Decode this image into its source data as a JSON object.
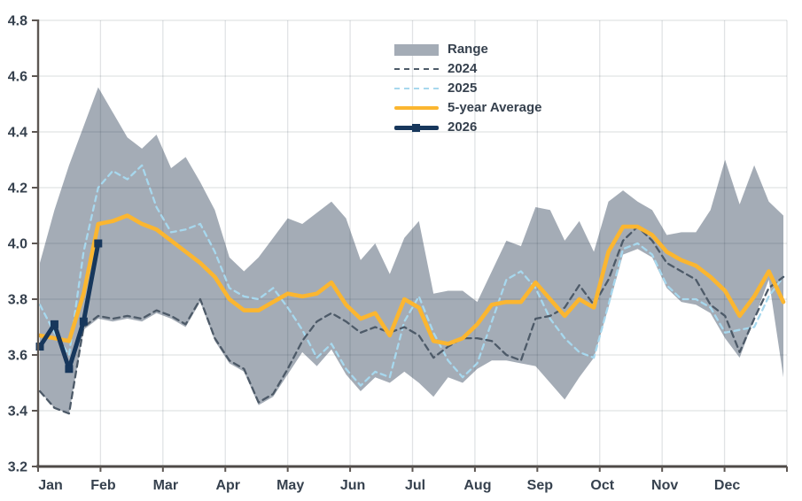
{
  "chart_data": {
    "type": "line",
    "title": "",
    "x_axis": {
      "label": "",
      "tick_labels": [
        "Jan",
        "Feb",
        "Mar",
        "Apr",
        "May",
        "Jun",
        "Jul",
        "Aug",
        "Sep",
        "Oct",
        "Nov",
        "Dec"
      ]
    },
    "y_axis": {
      "label": "",
      "tick_labels": [
        "4.8",
        "4.6",
        "4.4",
        "4.2",
        "4.0",
        "3.8",
        "3.6",
        "3.4",
        "3.2"
      ],
      "min": 3.2,
      "max": 4.8,
      "tick_step": 0.2
    },
    "grid": true,
    "n_points": 52,
    "x_unit": "weekly, Jan through Dec",
    "legend": {
      "position": "upper-center",
      "items": [
        {
          "label": "Range"
        },
        {
          "label": "2024"
        },
        {
          "label": "2025"
        },
        {
          "label": "5-year Average"
        },
        {
          "label": "2026"
        }
      ]
    },
    "series": [
      {
        "name": "Range",
        "type": "band",
        "color": "#a4acb6",
        "upper": [
          3.93,
          4.12,
          4.28,
          4.42,
          4.56,
          4.47,
          4.38,
          4.34,
          4.39,
          4.27,
          4.31,
          4.22,
          4.12,
          3.95,
          3.9,
          3.95,
          4.02,
          4.09,
          4.07,
          4.11,
          4.15,
          4.09,
          3.94,
          4.0,
          3.89,
          4.02,
          4.08,
          3.82,
          3.83,
          3.83,
          3.79,
          3.9,
          4.01,
          3.99,
          4.13,
          4.12,
          4.01,
          4.08,
          3.97,
          4.15,
          4.19,
          4.15,
          4.12,
          4.03,
          4.04,
          4.04,
          4.12,
          4.3,
          4.14,
          4.28,
          4.15,
          4.1
        ],
        "lower": [
          3.47,
          3.41,
          3.39,
          3.69,
          3.73,
          3.72,
          3.73,
          3.72,
          3.75,
          3.73,
          3.7,
          3.79,
          3.65,
          3.57,
          3.54,
          3.42,
          3.45,
          3.53,
          3.61,
          3.56,
          3.62,
          3.53,
          3.47,
          3.52,
          3.5,
          3.54,
          3.5,
          3.45,
          3.52,
          3.5,
          3.55,
          3.58,
          3.58,
          3.57,
          3.56,
          3.5,
          3.44,
          3.52,
          3.59,
          3.77,
          3.96,
          3.98,
          3.95,
          3.84,
          3.79,
          3.78,
          3.75,
          3.66,
          3.59,
          3.73,
          3.87,
          3.52
        ]
      },
      {
        "name": "2024",
        "type": "line",
        "style": "dashed",
        "color": "#4d5a68",
        "values": [
          3.47,
          3.41,
          3.39,
          3.7,
          3.74,
          3.73,
          3.74,
          3.73,
          3.76,
          3.74,
          3.71,
          3.8,
          3.66,
          3.58,
          3.55,
          3.43,
          3.46,
          3.55,
          3.65,
          3.72,
          3.75,
          3.72,
          3.68,
          3.7,
          3.68,
          3.7,
          3.67,
          3.59,
          3.63,
          3.66,
          3.66,
          3.65,
          3.6,
          3.58,
          3.73,
          3.74,
          3.77,
          3.85,
          3.78,
          3.87,
          4.01,
          4.06,
          4.01,
          3.93,
          3.9,
          3.87,
          3.78,
          3.74,
          3.61,
          3.73,
          3.84,
          3.88
        ]
      },
      {
        "name": "2025",
        "type": "line",
        "style": "dashed",
        "color": "#a7d8ee",
        "values": [
          3.78,
          3.68,
          3.6,
          3.97,
          4.2,
          4.26,
          4.23,
          4.28,
          4.13,
          4.04,
          4.05,
          4.07,
          3.97,
          3.84,
          3.81,
          3.8,
          3.84,
          3.77,
          3.69,
          3.59,
          3.64,
          3.55,
          3.49,
          3.54,
          3.52,
          3.72,
          3.81,
          3.68,
          3.58,
          3.52,
          3.57,
          3.72,
          3.87,
          3.9,
          3.84,
          3.73,
          3.66,
          3.61,
          3.59,
          3.78,
          3.98,
          4.0,
          3.96,
          3.85,
          3.8,
          3.8,
          3.77,
          3.68,
          3.69,
          3.7,
          3.81,
          3.88
        ]
      },
      {
        "name": "5-year Average",
        "type": "line",
        "style": "solid",
        "color": "#fbb630",
        "values": [
          3.67,
          3.66,
          3.65,
          3.82,
          4.07,
          4.08,
          4.1,
          4.07,
          4.05,
          4.01,
          3.97,
          3.93,
          3.88,
          3.8,
          3.76,
          3.76,
          3.79,
          3.82,
          3.81,
          3.82,
          3.86,
          3.78,
          3.73,
          3.75,
          3.67,
          3.8,
          3.77,
          3.65,
          3.64,
          3.66,
          3.71,
          3.78,
          3.79,
          3.79,
          3.86,
          3.8,
          3.74,
          3.8,
          3.77,
          3.97,
          4.06,
          4.06,
          4.03,
          3.97,
          3.94,
          3.92,
          3.88,
          3.83,
          3.74,
          3.81,
          3.9,
          3.79
        ]
      },
      {
        "name": "2026",
        "type": "line",
        "style": "solid-square-markers",
        "color": "#17375c",
        "values": [
          3.63,
          3.71,
          3.55,
          3.72,
          4.0
        ]
      }
    ]
  },
  "colors": {
    "background": "#ffffff",
    "axis": "#5d5753",
    "grid_on_white": "#dcdfe2",
    "grid_overlay": "rgba(40,55,70,0.14)",
    "tick_text": "#36414e"
  }
}
